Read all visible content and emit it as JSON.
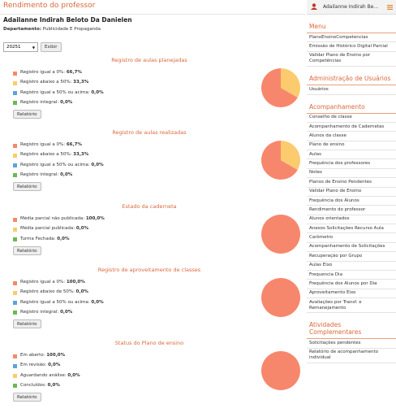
{
  "header": {
    "title": "Rendimento do professor",
    "teacher": "Adailanne Indirah Beloto Da Danielen",
    "department_label": "Departamento:",
    "department": "Publicidade E Propaganda",
    "period": "20251",
    "button": "Exibir"
  },
  "sections": [
    {
      "title": "Registro de aulas planejadas",
      "button": "Relatório",
      "items": [
        {
          "label": "Registro igual a 0%:",
          "value": 66.7,
          "value_label": "66,7%",
          "color": "#f7876c"
        },
        {
          "label": "Registro abaixo a 50%:",
          "value": 33.3,
          "value_label": "33,3%",
          "color": "#fccb6e"
        },
        {
          "label": "Registro igual a 50% ou acima:",
          "value": 0,
          "value_label": "0,0%",
          "color": "#5ba4d9"
        },
        {
          "label": "Registro integral:",
          "value": 0,
          "value_label": "0,0%",
          "color": "#6cb852"
        }
      ]
    },
    {
      "title": "Registro de aulas realizadas",
      "button": "Relatório",
      "items": [
        {
          "label": "Registro igual a 0%:",
          "value": 66.7,
          "value_label": "66,7%",
          "color": "#f7876c"
        },
        {
          "label": "Registro abaixo a 50%:",
          "value": 33.3,
          "value_label": "33,3%",
          "color": "#fccb6e"
        },
        {
          "label": "Registro igual a 50% ou acima:",
          "value": 0,
          "value_label": "0,0%",
          "color": "#5ba4d9"
        },
        {
          "label": "Registro integral:",
          "value": 0,
          "value_label": "0,0%",
          "color": "#6cb852"
        }
      ]
    },
    {
      "title": "Estado da caderneta",
      "button": "Relatório",
      "items": [
        {
          "label": "Média parcial não publicada:",
          "value": 100,
          "value_label": "100,0%",
          "color": "#f7876c"
        },
        {
          "label": "Média parcial publicada:",
          "value": 0,
          "value_label": "0,0%",
          "color": "#fccb6e"
        },
        {
          "label": "Turma Fechada:",
          "value": 0,
          "value_label": "0,0%",
          "color": "#6cb852"
        }
      ]
    },
    {
      "title": "Registro de aproveitamento de classes",
      "button": "Relatório",
      "items": [
        {
          "label": "Registro igual a 0%:",
          "value": 100,
          "value_label": "100,0%",
          "color": "#f7876c"
        },
        {
          "label": "Registro abaixo de 50%:",
          "value": 0,
          "value_label": "0,0%",
          "color": "#fccb6e"
        },
        {
          "label": "Registro igual a 50% ou acima:",
          "value": 0,
          "value_label": "0,0%",
          "color": "#5ba4d9"
        },
        {
          "label": "Registro integral:",
          "value": 0,
          "value_label": "0,0%",
          "color": "#6cb852"
        }
      ]
    },
    {
      "title": "Status do Plano de ensino",
      "button": "Relatório",
      "items": [
        {
          "label": "Em aberto:",
          "value": 100,
          "value_label": "100,0%",
          "color": "#f7876c"
        },
        {
          "label": "Em revisão:",
          "value": 0,
          "value_label": "0,0%",
          "color": "#5ba4d9"
        },
        {
          "label": "Aguardando análise:",
          "value": 0,
          "value_label": "0,0%",
          "color": "#fccb6e"
        },
        {
          "label": "Concluídos:",
          "value": 0,
          "value_label": "0,0%",
          "color": "#6cb852"
        }
      ]
    }
  ],
  "sidebar": {
    "user": "Adailanne Indirah Be...",
    "groups": [
      {
        "title": "Menu",
        "items": [
          "PlanoEnsinoCompetencias",
          "Emissão de Histórico Digital Parcial",
          "Validar Plano de Ensino por Competências"
        ]
      },
      {
        "title": "Administração de Usuários",
        "items": [
          "Usuários"
        ]
      },
      {
        "title": "Acompanhamento",
        "items": [
          "Conselho de classe",
          "Acompanhamento de Cadernetas",
          "Alunos da classe",
          "Plano de ensino",
          "Aulas",
          "Frequência dos professores",
          "Notes",
          "Planos de Ensino Pendentes",
          "Validar Plano de Ensino",
          "Frequência dos Alunos",
          "Rendimento do professor",
          "Alunos orientados",
          "Anexos Solicitações Recurso Aula",
          "Carômetro",
          "Acompanhamento de Solicitações",
          "Recuperação por Grupo",
          "Aulas Eixo",
          "Frequencia Dia",
          "Frequência dos Alunos por Dia",
          "Aproveitamento Eixo",
          "Avaliações por Transf. e Remanejamento"
        ]
      },
      {
        "title": "Atividades Complementares",
        "items": [
          "Solicitações pendentes",
          "Relatório de acompanhamento individual"
        ]
      }
    ]
  }
}
